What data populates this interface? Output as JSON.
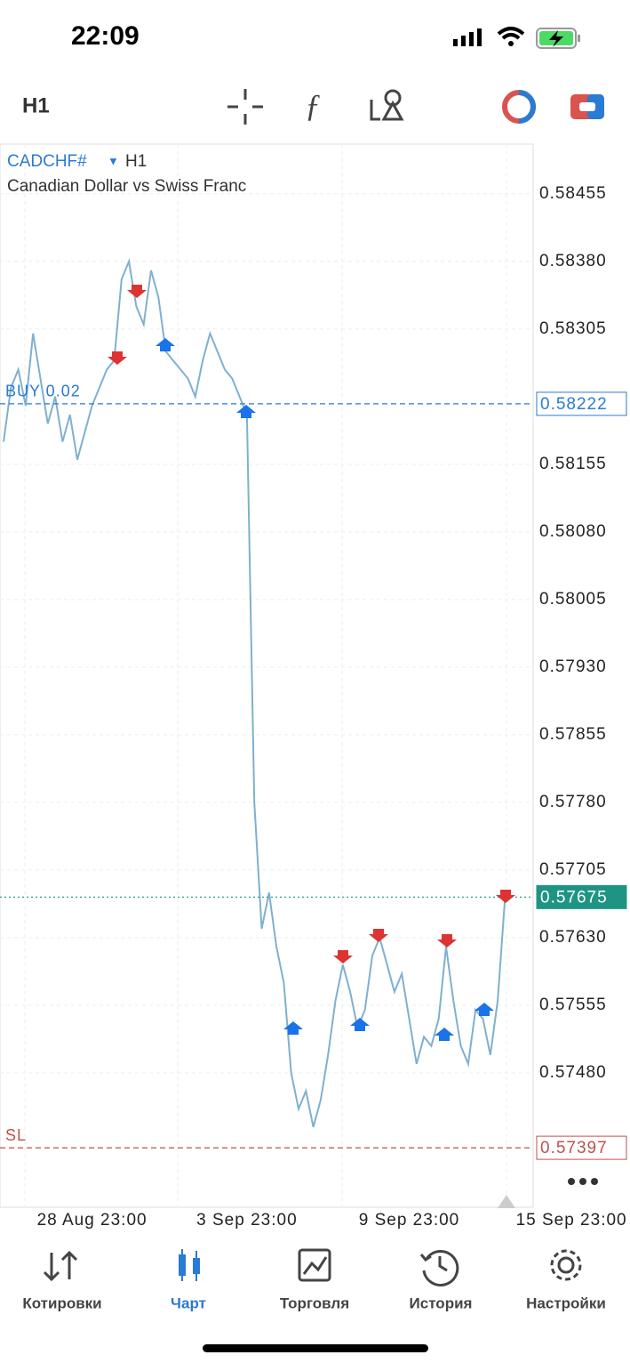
{
  "status_bar": {
    "time": "22:09"
  },
  "toolbar": {
    "timeframe": "H1"
  },
  "chart_data": {
    "type": "line",
    "title": "CADCHF#",
    "timeframe": "H1",
    "subtitle": "Canadian Dollar vs Swiss Franc",
    "categories": [
      null,
      null,
      null,
      null,
      null,
      null,
      null,
      null,
      null,
      null,
      null,
      null,
      "28 Aug 23:00",
      null,
      null,
      null,
      null,
      null,
      null,
      null,
      null,
      null,
      null,
      null,
      null,
      null,
      null,
      null,
      null,
      null,
      null,
      null,
      null,
      "3 Sep 23:00",
      null,
      null,
      null,
      null,
      null,
      null,
      null,
      null,
      null,
      null,
      null,
      null,
      null,
      null,
      null,
      null,
      null,
      null,
      null,
      null,
      null,
      "9 Sep 23:00",
      null,
      null,
      null,
      null,
      null,
      null,
      null,
      null,
      null,
      null,
      null,
      null,
      null,
      null,
      null,
      null,
      null,
      null,
      null,
      null,
      null,
      "15 Sep 23:00"
    ],
    "values": [
      0.5818,
      0.5824,
      0.5826,
      0.5822,
      0.583,
      0.5825,
      0.582,
      0.5823,
      0.5818,
      0.5821,
      0.5816,
      0.5819,
      0.5822,
      0.5824,
      0.5826,
      0.5827,
      0.5836,
      0.5838,
      0.5833,
      0.5831,
      0.5837,
      0.5834,
      0.5828,
      0.5827,
      0.5826,
      0.5825,
      0.5823,
      0.5827,
      0.583,
      0.5828,
      0.5826,
      0.5825,
      0.5823,
      0.5821,
      0.5778,
      0.5764,
      0.5768,
      0.5762,
      0.5758,
      0.5748,
      0.5744,
      0.5746,
      0.5742,
      0.5745,
      0.575,
      0.5756,
      0.576,
      0.5757,
      0.5753,
      0.5755,
      0.5761,
      0.5763,
      0.576,
      0.5757,
      0.5759,
      0.5754,
      0.5749,
      0.5752,
      0.5751,
      0.5754,
      0.5762,
      0.5756,
      0.5751,
      0.5749,
      0.5755,
      0.5754,
      0.575,
      0.5756,
      0.57675,
      null,
      null,
      null,
      null,
      null,
      null,
      null,
      null,
      null
    ],
    "color": "#7fb0cf",
    "ylim": [
      0.57331,
      0.5851
    ],
    "yticks": [
      0.58455,
      {
        "value": 0.5838,
        "label": "0.58380"
      },
      0.58305,
      0.58155,
      {
        "value": 0.5808,
        "label": "0.58080"
      },
      0.58005,
      {
        "value": 0.5793,
        "label": "0.57930"
      },
      0.57855,
      {
        "value": 0.5778,
        "label": "0.57780"
      },
      0.57705,
      {
        "value": 0.5763,
        "label": "0.57630"
      },
      0.57555,
      {
        "value": 0.5748,
        "label": "0.57480"
      }
    ],
    "grid": true,
    "price_lines": [
      {
        "label": "BUY 0.02",
        "value": 0.58222,
        "color": "#2a7bd4"
      },
      {
        "value": 0.57675,
        "color": "#1e9583"
      },
      {
        "label": "SL",
        "value": 0.57397,
        "color": "#c0504d"
      }
    ]
  },
  "nav": {
    "items": [
      "Котировки",
      "Чарт",
      "Торговля",
      "История",
      "Настройки"
    ],
    "active": 1
  }
}
